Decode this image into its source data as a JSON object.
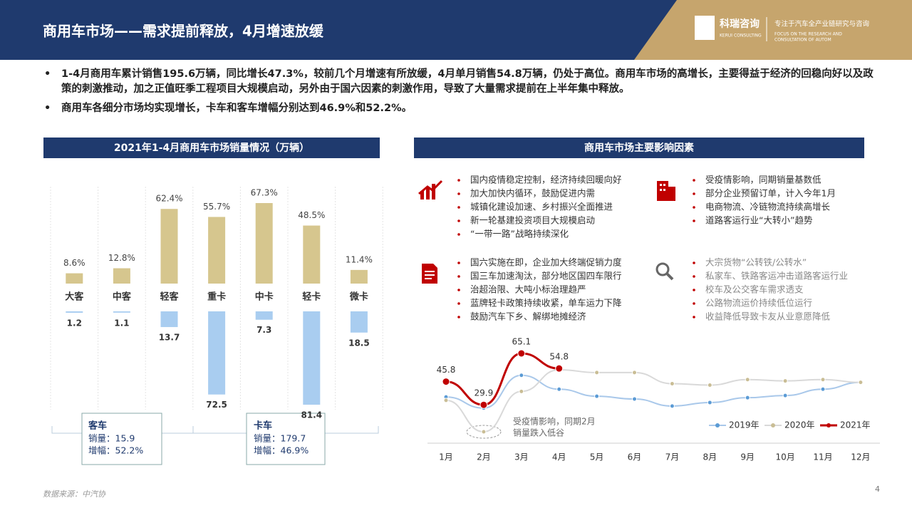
{
  "header": {
    "title": "商用车市场——需求提前释放，4月增速放缓"
  },
  "logo": {
    "name": "科瑞咨询",
    "name_en": "KERUI CONSULTING",
    "tagline": "专注于汽车全产业链研究与咨询",
    "tagline_en": [
      "FOCUS ON THE RESEARCH AND",
      "CONSULTATION OF AUTOM"
    ]
  },
  "bullets": [
    "1-4月商用车累计销售195.6万辆，同比增长47.3%，较前几个月增速有所放缓，4月单月销售54.8万辆，仍处于高位。商用车市场的高增长，主要得益于经济的回稳向好以及政策的刺激推动，加之正值旺季工程项目大规模启动，另外由于国六因素的刺激作用，导致了大量需求提前在上半年集中释放。",
    "商用车各细分市场均实现增长，卡车和客车增幅分别达到46.9%和52.2%。"
  ],
  "factors_title": "商用车市场主要影响因素",
  "factors": [
    {
      "items": [
        "国内疫情稳定控制，经济持续回暖向好",
        "加大加快内循环，鼓励促进内需",
        "城镇化建设加速、乡村振兴全面推进",
        "新一轮基建投资项目大规模启动",
        "“一带一路”战略持续深化"
      ]
    },
    {
      "items": [
        "受疫情影响，同期销量基数低",
        "部分企业预留订单，计入今年1月",
        "电商物流、冷链物流持续高增长",
        "道路客运行业“大转小”趋势"
      ]
    },
    {
      "items": [
        "国六实施在即，企业加大终端促销力度",
        "国三车加速淘汰，部分地区国四车限行",
        "治超治限、大吨小标治理趋严",
        "蓝牌轻卡政策持续收紧，单车运力下降",
        "鼓励汽车下乡、解绑地摊经济"
      ]
    },
    {
      "items": [
        "大宗货物“公转铁/公转水”",
        "私家车、铁路客运冲击道路客运行业",
        "校车及公交客车需求透支",
        "公路物流运价持续低位运行",
        "收益降低导致卡友从业意愿降低"
      ]
    }
  ],
  "summary": [
    {
      "name": "客车",
      "lines": [
        "销量：15.9",
        "增幅：52.2%"
      ]
    },
    {
      "name": "卡车",
      "lines": [
        "销量：179.7",
        "增幅：46.9%"
      ]
    }
  ],
  "chart_data": [
    {
      "type": "bar",
      "title": "2021年1-4月商用车市场销量情况（万辆）",
      "categories": [
        "大客",
        "中客",
        "轻客",
        "重卡",
        "中卡",
        "轻卡",
        "微卡"
      ],
      "series": [
        {
          "color": "#d6c68e",
          "values": [
            8.6,
            12.8,
            62.4,
            55.7,
            67.3,
            48.5,
            11.4
          ],
          "value_labels": [
            "8.6%",
            "12.8%",
            "62.4%",
            "55.7%",
            "67.3%",
            "48.5%",
            "11.4%"
          ]
        },
        {
          "color": "#a9cdf0",
          "values": [
            1.2,
            1.1,
            13.7,
            72.5,
            7.3,
            81.4,
            18.5
          ]
        }
      ]
    },
    {
      "type": "line",
      "categories": [
        "1月",
        "2月",
        "3月",
        "4月",
        "5月",
        "6月",
        "7月",
        "8月",
        "9月",
        "10月",
        "11月",
        "12月"
      ],
      "series": [
        {
          "name": "2019年",
          "color": "#a9c8ea",
          "marker": "#5b9bd5",
          "values": [
            35.3,
            27.7,
            50.1,
            40.6,
            35.8,
            33.9,
            29.1,
            31.5,
            34.8,
            36.3,
            40.6,
            45.3
          ]
        },
        {
          "name": "2020年",
          "color": "#d9d9d9",
          "marker": "#c9bd95",
          "values": [
            33.0,
            11.5,
            39.1,
            53.9,
            52.0,
            52.0,
            44.4,
            43.4,
            47.2,
            46.3,
            47.2,
            45.3
          ]
        },
        {
          "name": "2021年",
          "color": "#c00000",
          "marker": "#c00000",
          "values": [
            45.8,
            29.9,
            65.1,
            54.8,
            null,
            null,
            null,
            null,
            null,
            null,
            null,
            null
          ],
          "labels": true
        }
      ],
      "annotation": [
        "受疫情影响，同期2月",
        "销量跌入低谷"
      ]
    }
  ],
  "source": "数据来源：中汽协",
  "page_number": "4"
}
